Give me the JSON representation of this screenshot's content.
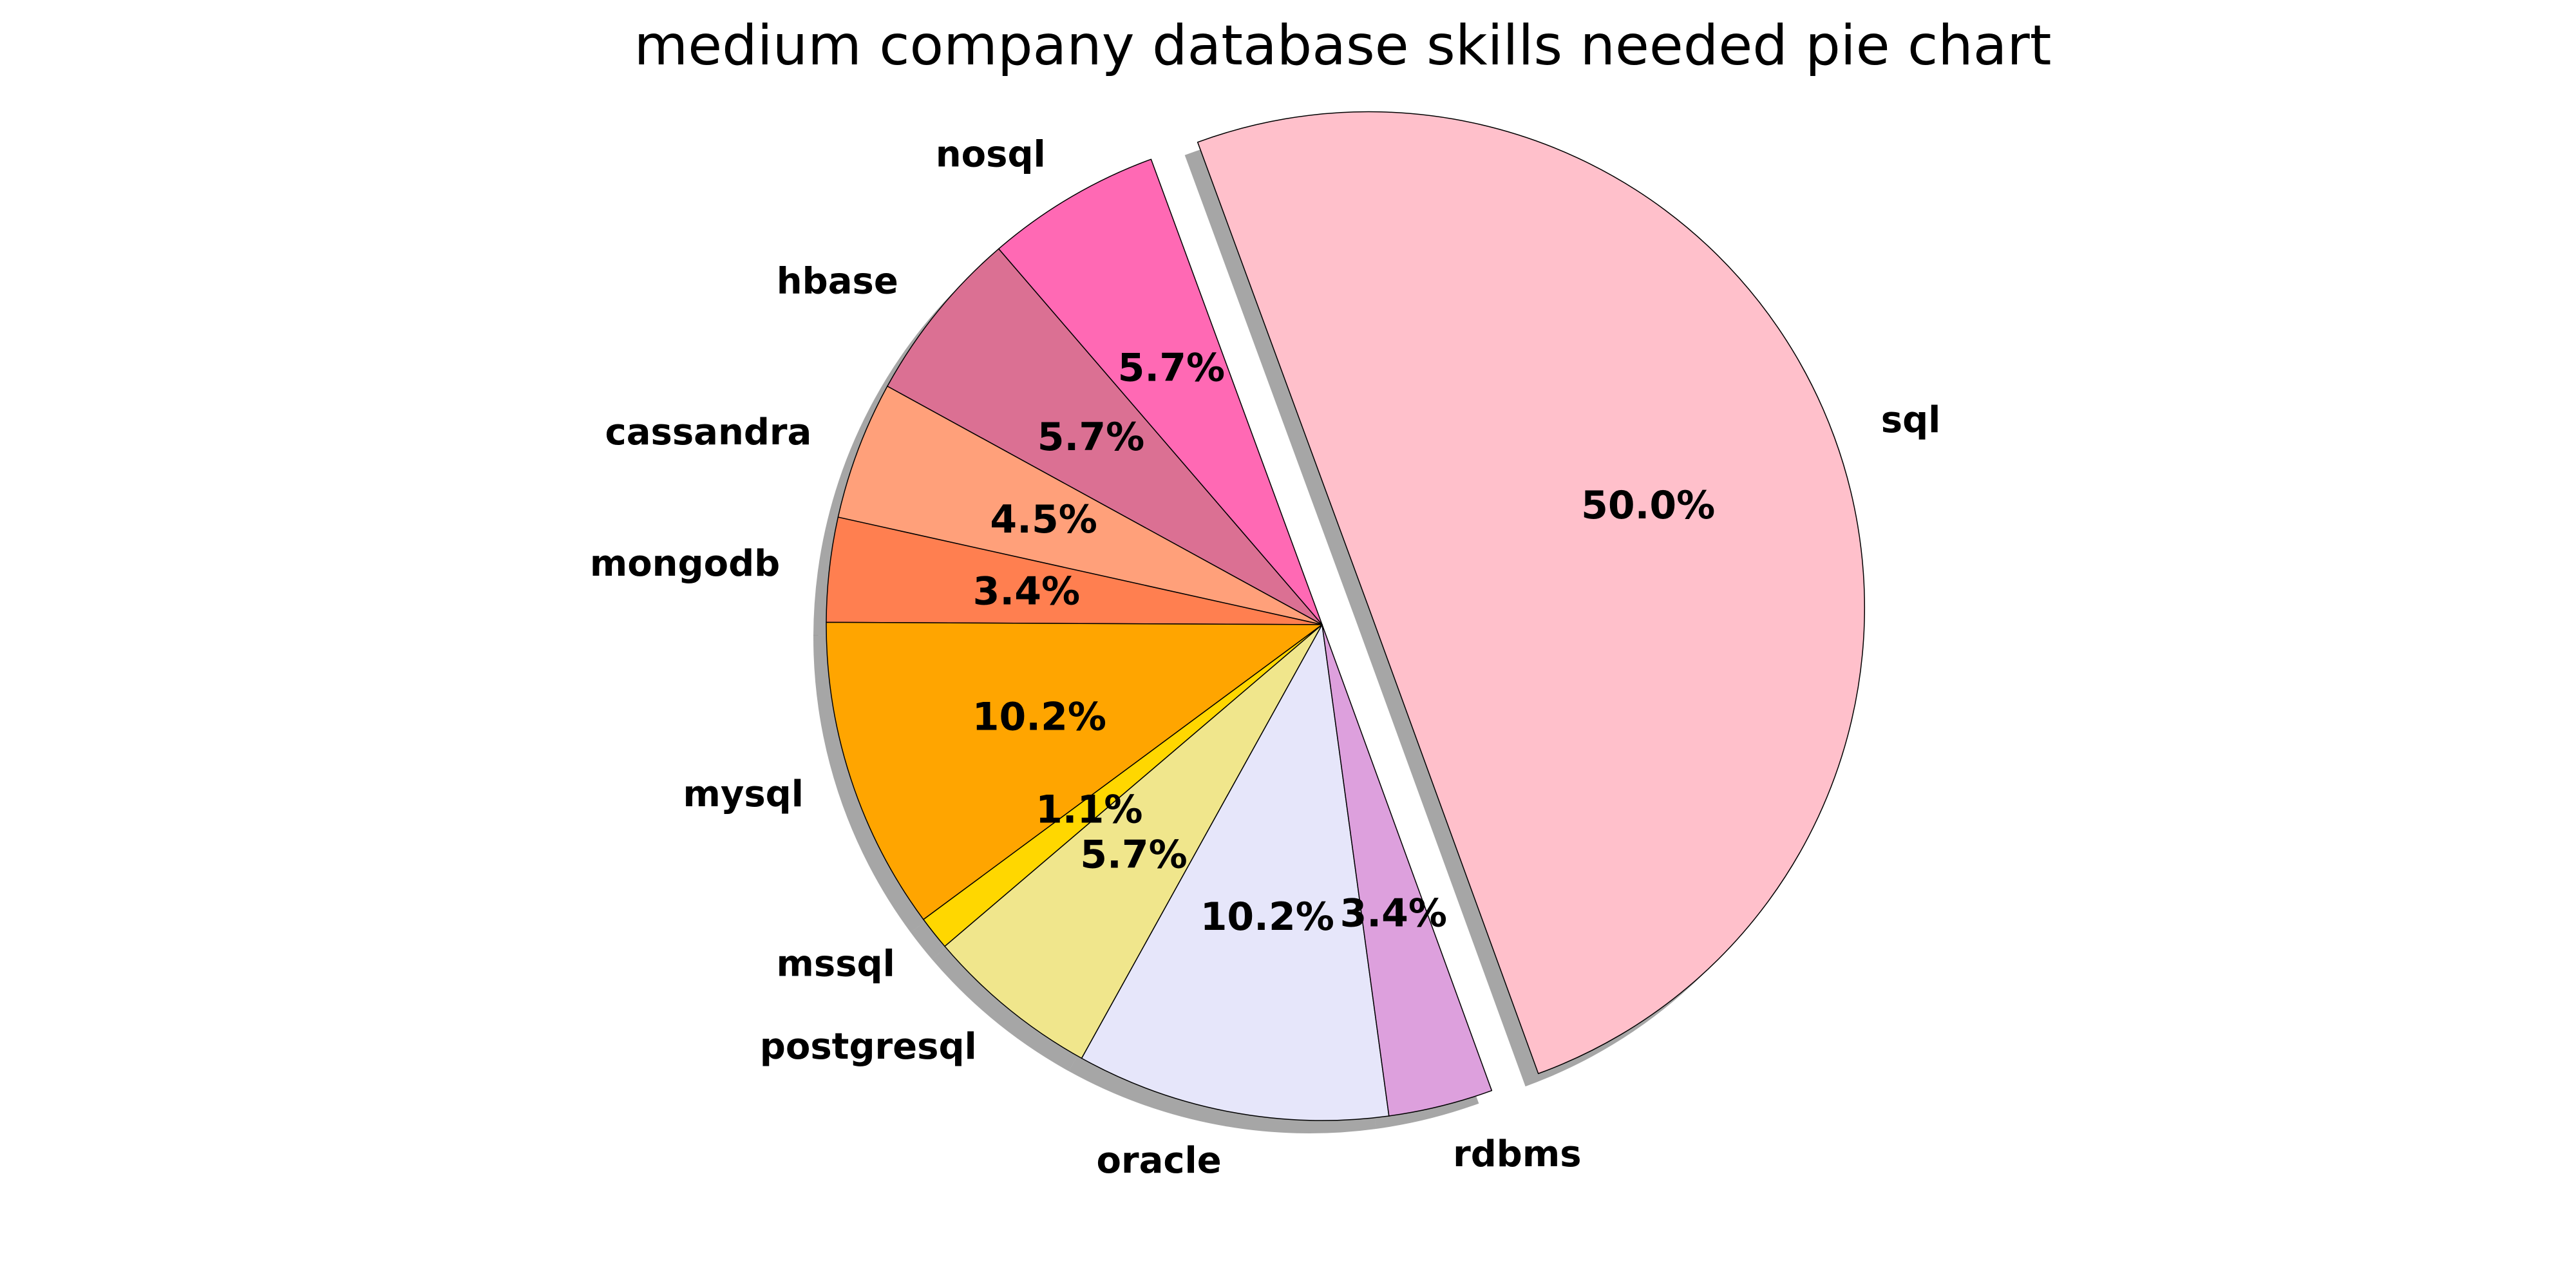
{
  "chart_data": {
    "type": "pie",
    "title": "medium company database skills needed pie chart",
    "start_angle_deg": -70,
    "counterclock": true,
    "shadow": true,
    "slices": [
      {
        "label": "sql",
        "value": 50.0,
        "pct": "50.0%",
        "color": "#FFC0CB",
        "explode": 0.1
      },
      {
        "label": "nosql",
        "value": 5.7,
        "pct": "5.7%",
        "color": "#FF69B4",
        "explode": 0
      },
      {
        "label": "hbase",
        "value": 5.7,
        "pct": "5.7%",
        "color": "#DB7093",
        "explode": 0
      },
      {
        "label": "cassandra",
        "value": 4.5,
        "pct": "4.5%",
        "color": "#FFA07A",
        "explode": 0
      },
      {
        "label": "mongodb",
        "value": 3.4,
        "pct": "3.4%",
        "color": "#FF7F50",
        "explode": 0
      },
      {
        "label": "mysql",
        "value": 10.2,
        "pct": "10.2%",
        "color": "#FFA500",
        "explode": 0
      },
      {
        "label": "mssql",
        "value": 1.1,
        "pct": "1.1%",
        "color": "#FFD700",
        "explode": 0
      },
      {
        "label": "postgresql",
        "value": 5.7,
        "pct": "5.7%",
        "color": "#F0E68C",
        "explode": 0
      },
      {
        "label": "oracle",
        "value": 10.2,
        "pct": "10.2%",
        "color": "#E6E6FA",
        "explode": 0
      },
      {
        "label": "rdbms",
        "value": 3.4,
        "pct": "3.4%",
        "color": "#DDA0DD",
        "explode": 0
      }
    ]
  }
}
